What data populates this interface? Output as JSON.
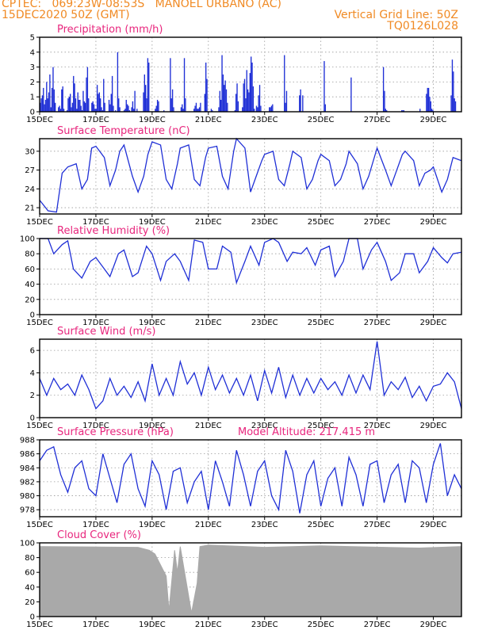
{
  "header": {
    "line1": "CPTEC:   069:23W-08:53S   MANOEL URBANO (AC)",
    "line2": "15DEC2020 50Z (GMT)",
    "grid_note": "Vertical Grid Line: 50Z",
    "code": "TQ0126L028"
  },
  "colors": {
    "line": "#1f2fd6",
    "bar": "#1f2fd6",
    "title": "#e8267d",
    "header": "#f08a24",
    "cloud": "#a9a9a9"
  },
  "x_ticks": [
    "15DEC",
    "17DEC",
    "19DEC",
    "21DEC",
    "23DEC",
    "25DEC",
    "27DEC",
    "29DEC"
  ],
  "chart_data": [
    {
      "type": "bar",
      "title": "Precipitation (mm/h)",
      "ylim": [
        0,
        5
      ],
      "yticks": [
        "0",
        "1",
        "2",
        "3",
        "4",
        "5"
      ],
      "xlim_days": [
        0,
        15
      ],
      "values": [
        0.6,
        0.9,
        1.1,
        1.6,
        0.5,
        0.8,
        2.0,
        0.9,
        1.3,
        2.5,
        0.3,
        1.6,
        3.0,
        1.5,
        0.6,
        0.0,
        0.0,
        0.3,
        0.4,
        0.2,
        1.5,
        1.7,
        0.2,
        0.0,
        0.0,
        0.1,
        0.9,
        1.0,
        1.2,
        0.3,
        0.6,
        2.4,
        1.9,
        0.9,
        0.2,
        1.3,
        0.8,
        0.8,
        0.4,
        0.1,
        1.4,
        0.7,
        0.6,
        2.3,
        3.0,
        0.9,
        0.0,
        0.0,
        0.6,
        0.7,
        0.5,
        0.2,
        0.2,
        1.8,
        1.2,
        1.3,
        0.9,
        0.3,
        0.1,
        2.2,
        0.6,
        0.0,
        0.0,
        0.0,
        0.8,
        0.5,
        1.2,
        2.4,
        0.4,
        0.0,
        0.1,
        0.0,
        4.0,
        0.9,
        0.3,
        0.0,
        0.0,
        0.0,
        0.1,
        0.2,
        0.8,
        0.5,
        0.4,
        0.1,
        0.0,
        0.3,
        0.7,
        0.2,
        1.4,
        0.0,
        0.2,
        0.0,
        0.0,
        0.0,
        0.0,
        0.0,
        1.3,
        2.5,
        1.8,
        0.9,
        3.6,
        3.3,
        0.0,
        0.0,
        0.0,
        0.0,
        0.0,
        0.2,
        0.4,
        0.8,
        0.7,
        0.0,
        0.0,
        0.0,
        0.0,
        0.1,
        0.0,
        0.0,
        0.0,
        0.0,
        0.0,
        3.6,
        0.9,
        1.5,
        0.3,
        0.0,
        0.0,
        0.0,
        0.0,
        0.0,
        0.0,
        0.3,
        0.5,
        0.2,
        3.6,
        0.9,
        0.0,
        0.0,
        0.0,
        0.0,
        0.0,
        0.0,
        0.0,
        0.2,
        0.4,
        0.6,
        0.2,
        0.2,
        0.3,
        0.6,
        0.0,
        0.0,
        0.0,
        1.2,
        3.3,
        2.2,
        0.0,
        0.0,
        0.0,
        0.2,
        0.1,
        0.0,
        0.0,
        0.0,
        0.0,
        0.0,
        0.3,
        1.4,
        0.8,
        3.8,
        2.5,
        1.8,
        2.1,
        1.5,
        0.6,
        0.0,
        0.0,
        0.0,
        0.0,
        0.0,
        0.0,
        0.1,
        1.2,
        1.9,
        0.7,
        0.0,
        0.0,
        0.0,
        0.3,
        1.9,
        2.2,
        0.9,
        2.8,
        1.5,
        1.3,
        2.6,
        3.7,
        3.3,
        1.7,
        0.2,
        0.0,
        0.4,
        0.3,
        1.1,
        1.8,
        0.4,
        0.0,
        0.0,
        0.0,
        0.0,
        0.0,
        0.0,
        0.0,
        0.3,
        0.3,
        0.4,
        0.5,
        0.0,
        0.0,
        0.0,
        0.0,
        0.0,
        0.0,
        0.0,
        0.0,
        0.0,
        0.0,
        3.8,
        0.6,
        1.4,
        0.0,
        0.0,
        0.0,
        0.0,
        0.0,
        0.0,
        0.0,
        0.0,
        0.0,
        0.0,
        0.0,
        1.1,
        1.5,
        0.0,
        1.1,
        0.0,
        0.0,
        0.0,
        0.0,
        0.0,
        0.0,
        0.0,
        0.0,
        0.0,
        0.0,
        0.0,
        0.0,
        0.0,
        0.0,
        0.0,
        0.0,
        0.0,
        0.0,
        0.0,
        3.4,
        0.5,
        0.0,
        0.0,
        0.0,
        0.0,
        0.0,
        0.0,
        0.0,
        0.0,
        0.0,
        0.0,
        0.0,
        0.0,
        0.0,
        0.0,
        0.0,
        0.0,
        0.0,
        0.0,
        0.0,
        0.0,
        0.0,
        0.0,
        0.0,
        2.3,
        0.0,
        0.0,
        0.0,
        0.0,
        0.0,
        0.0,
        0.0,
        0.0,
        0.0,
        0.0,
        0.0,
        0.0,
        0.0,
        0.0,
        0.0,
        0.0,
        0.0,
        0.0,
        0.0,
        0.0,
        0.0,
        0.0,
        0.0,
        0.0,
        0.0,
        0.0,
        0.0,
        0.0,
        0.0,
        3.0,
        1.4,
        0.2,
        0.1,
        0.0,
        0.0,
        0.0,
        0.0,
        0.0,
        0.0,
        0.0,
        0.0,
        0.0,
        0.0,
        0.0,
        0.0,
        0.0,
        0.1,
        0.1,
        0.1,
        0.0,
        0.0,
        0.0,
        0.0,
        0.0,
        0.0,
        0.0,
        0.0,
        0.0,
        0.0,
        0.0,
        0.0,
        0.0,
        0.0,
        0.2,
        0.0,
        0.0,
        0.0,
        0.0,
        0.0,
        1.2,
        1.6,
        1.6,
        1.0,
        0.7,
        0.2,
        0.1,
        0.0,
        0.0,
        0.0,
        0.0,
        0.0,
        0.0,
        0.0,
        0.0,
        0.0,
        0.0,
        0.0,
        0.0,
        0.0,
        0.0,
        0.0,
        0.0,
        1.1,
        3.5,
        2.7,
        0.9,
        0.7,
        0.0,
        0.0,
        0.0,
        0.0,
        0.0
      ]
    },
    {
      "type": "line",
      "title": "Surface Temperature (nC)",
      "ylim": [
        20,
        32
      ],
      "yticks": [
        "21",
        "24",
        "27",
        "30"
      ],
      "ytick_values": [
        21,
        24,
        27,
        30
      ],
      "x_days": [
        0,
        0.3,
        0.6,
        0.8,
        1.0,
        1.3,
        1.5,
        1.7,
        1.85,
        2.0,
        2.3,
        2.5,
        2.7,
        2.85,
        3.0,
        3.3,
        3.5,
        3.7,
        3.85,
        4.0,
        4.3,
        4.5,
        4.7,
        4.9,
        5.0,
        5.3,
        5.5,
        5.7,
        5.9,
        6.0,
        6.3,
        6.5,
        6.7,
        6.9,
        7.0,
        7.3,
        7.5,
        7.7,
        7.9,
        8.0,
        8.3,
        8.5,
        8.7,
        8.9,
        9.0,
        9.3,
        9.5,
        9.7,
        9.9,
        10.0,
        10.3,
        10.5,
        10.7,
        10.9,
        11.0,
        11.3,
        11.5,
        11.7,
        11.9,
        12.0,
        12.3,
        12.5,
        12.7,
        12.9,
        13.0,
        13.3,
        13.5,
        13.7,
        13.9,
        14.0,
        14.3,
        14.5,
        14.7,
        15.0
      ],
      "values": [
        22.2,
        20.5,
        20.3,
        26.5,
        27.5,
        28.0,
        24.0,
        25.5,
        30.5,
        30.8,
        29.0,
        24.5,
        27.0,
        30.0,
        31.0,
        26.0,
        23.5,
        26.0,
        29.5,
        31.5,
        31.0,
        25.5,
        24.0,
        28.0,
        30.5,
        31.0,
        25.5,
        24.5,
        29.0,
        30.5,
        30.8,
        26.0,
        24.0,
        30.0,
        32.0,
        30.5,
        23.5,
        26.0,
        28.5,
        29.5,
        30.0,
        25.5,
        24.5,
        28.0,
        30.0,
        29.0,
        24.0,
        25.5,
        28.5,
        29.5,
        28.5,
        24.5,
        25.5,
        28.0,
        30.0,
        28.0,
        24.0,
        26.0,
        29.0,
        30.5,
        27.0,
        24.5,
        27.0,
        29.5,
        30.0,
        28.5,
        24.5,
        26.5,
        27.0,
        27.5,
        23.5,
        25.5,
        29.0,
        28.5
      ]
    },
    {
      "type": "line",
      "title": "Relative Humidity (%)",
      "ylim": [
        0,
        100
      ],
      "yticks": [
        "0",
        "20",
        "40",
        "60",
        "80",
        "100"
      ],
      "ytick_values": [
        0,
        20,
        40,
        60,
        80,
        100
      ],
      "x_days": [
        0,
        0.3,
        0.5,
        0.8,
        1.0,
        1.2,
        1.5,
        1.8,
        2.0,
        2.3,
        2.5,
        2.8,
        3.0,
        3.3,
        3.5,
        3.8,
        4.0,
        4.3,
        4.5,
        4.8,
        5.0,
        5.3,
        5.5,
        5.8,
        6.0,
        6.3,
        6.5,
        6.8,
        7.0,
        7.3,
        7.5,
        7.8,
        8.0,
        8.3,
        8.5,
        8.8,
        9.0,
        9.3,
        9.5,
        9.8,
        10.0,
        10.3,
        10.5,
        10.8,
        11.0,
        11.3,
        11.5,
        11.8,
        12.0,
        12.3,
        12.5,
        12.8,
        13.0,
        13.3,
        13.5,
        13.8,
        14.0,
        14.3,
        14.5,
        14.7,
        15.0
      ],
      "values": [
        100,
        100,
        80,
        92,
        97,
        60,
        48,
        70,
        75,
        60,
        50,
        80,
        85,
        50,
        55,
        90,
        80,
        45,
        70,
        80,
        70,
        45,
        98,
        95,
        60,
        60,
        90,
        82,
        42,
        70,
        90,
        65,
        95,
        100,
        95,
        70,
        82,
        80,
        88,
        65,
        85,
        90,
        50,
        70,
        100,
        100,
        60,
        85,
        95,
        70,
        45,
        55,
        80,
        80,
        55,
        70,
        88,
        75,
        68,
        80,
        82
      ]
    },
    {
      "type": "line",
      "title": "Surface Wind (m/s)",
      "ylim": [
        0,
        7
      ],
      "yticks": [
        "0",
        "2",
        "4",
        "6"
      ],
      "ytick_values": [
        0,
        2,
        4,
        6
      ],
      "x_days": [
        0,
        0.25,
        0.5,
        0.75,
        1.0,
        1.25,
        1.5,
        1.75,
        2.0,
        2.25,
        2.5,
        2.75,
        3.0,
        3.25,
        3.5,
        3.75,
        4.0,
        4.25,
        4.5,
        4.75,
        5.0,
        5.25,
        5.5,
        5.75,
        6.0,
        6.25,
        6.5,
        6.75,
        7.0,
        7.25,
        7.5,
        7.75,
        8.0,
        8.25,
        8.5,
        8.75,
        9.0,
        9.25,
        9.5,
        9.75,
        10.0,
        10.25,
        10.5,
        10.75,
        11.0,
        11.25,
        11.5,
        11.75,
        12.0,
        12.25,
        12.5,
        12.75,
        13.0,
        13.25,
        13.5,
        13.75,
        14.0,
        14.25,
        14.5,
        14.75,
        15.0
      ],
      "values": [
        3.5,
        2.0,
        3.5,
        2.5,
        3.0,
        2.0,
        3.8,
        2.5,
        0.8,
        1.5,
        3.5,
        2.0,
        2.8,
        1.8,
        3.2,
        1.5,
        4.8,
        2.0,
        3.5,
        2.0,
        5.0,
        3.0,
        4.0,
        2.0,
        4.5,
        2.5,
        3.8,
        2.2,
        3.5,
        2.0,
        3.8,
        1.5,
        4.2,
        2.2,
        4.5,
        1.8,
        3.8,
        2.0,
        3.5,
        2.2,
        3.5,
        2.5,
        3.2,
        2.0,
        3.8,
        2.2,
        3.8,
        2.5,
        6.8,
        2.0,
        3.2,
        2.5,
        3.6,
        1.8,
        2.8,
        1.5,
        2.8,
        3.0,
        4.0,
        3.2,
        0.8
      ]
    },
    {
      "type": "line",
      "title": "Surface Pressure (hPa)",
      "annotation": "Model Altitude: 217.415  m",
      "ylim": [
        977,
        988
      ],
      "yticks": [
        "978",
        "980",
        "982",
        "984",
        "986",
        "988"
      ],
      "ytick_values": [
        978,
        980,
        982,
        984,
        986,
        988
      ],
      "x_days": [
        0,
        0.25,
        0.5,
        0.75,
        1.0,
        1.25,
        1.5,
        1.75,
        2.0,
        2.25,
        2.5,
        2.75,
        3.0,
        3.25,
        3.5,
        3.75,
        4.0,
        4.25,
        4.5,
        4.75,
        5.0,
        5.25,
        5.5,
        5.75,
        6.0,
        6.25,
        6.5,
        6.75,
        7.0,
        7.25,
        7.5,
        7.75,
        8.0,
        8.25,
        8.5,
        8.75,
        9.0,
        9.25,
        9.5,
        9.75,
        10.0,
        10.25,
        10.5,
        10.75,
        11.0,
        11.25,
        11.5,
        11.75,
        12.0,
        12.25,
        12.5,
        12.75,
        13.0,
        13.25,
        13.5,
        13.75,
        14.0,
        14.25,
        14.5,
        14.75,
        15.0
      ],
      "values": [
        985,
        986.5,
        987,
        983,
        980.5,
        984,
        985,
        981,
        980,
        986,
        982.5,
        979,
        984.5,
        986,
        981,
        978.5,
        985,
        983,
        978,
        983.5,
        984,
        979,
        982,
        983.5,
        978,
        985,
        982,
        978.5,
        986.5,
        983,
        978.5,
        983.5,
        985,
        980,
        978,
        986.5,
        983.5,
        977.5,
        983,
        985,
        978.5,
        982.5,
        984,
        978.5,
        985.5,
        983,
        978.5,
        984.5,
        985,
        979,
        983,
        984.5,
        979,
        985,
        984,
        979,
        984.5,
        987.5,
        980,
        983,
        981
      ]
    },
    {
      "type": "area",
      "title": "Cloud Cover (%)",
      "ylim": [
        0,
        100
      ],
      "yticks": [
        "0",
        "20",
        "40",
        "60",
        "80",
        "100"
      ],
      "ytick_values": [
        0,
        20,
        40,
        60,
        80,
        100
      ],
      "x_days": [
        0,
        3.5,
        3.9,
        4.1,
        4.5,
        4.6,
        4.8,
        4.9,
        5.0,
        5.4,
        5.6,
        5.7,
        6.0,
        8.0,
        10.0,
        11.0,
        13.5,
        15.0
      ],
      "values": [
        95,
        94,
        90,
        85,
        55,
        8,
        90,
        60,
        95,
        5,
        45,
        95,
        97,
        94,
        96,
        95,
        93,
        95
      ]
    }
  ]
}
